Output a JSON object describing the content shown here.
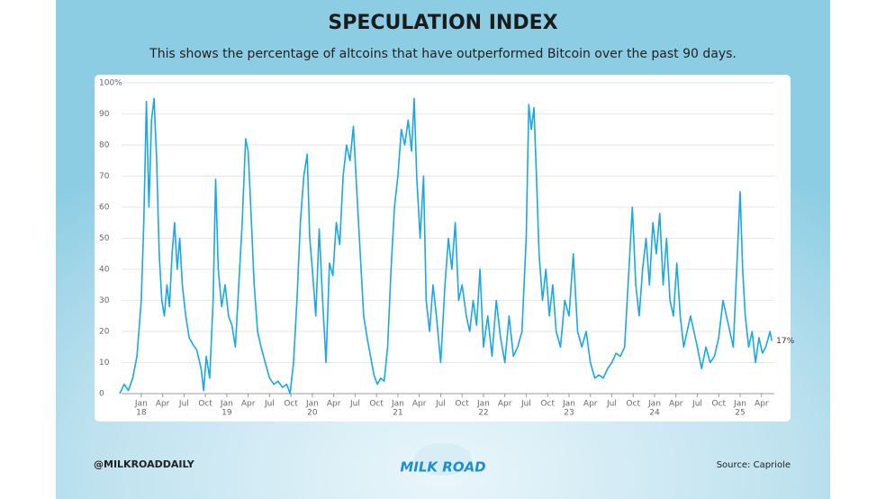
{
  "chart_data": {
    "type": "line",
    "title": "SPECULATION INDEX",
    "subtitle": "This shows the percentage of altcoins that have outperformed Bitcoin over the past 90 days.",
    "handle": "@MILKROADDAILY",
    "logo": "MILK ROAD",
    "source": "Source: Capriole",
    "end_label": "17%",
    "color": "#1aa7e8",
    "grid": true,
    "ylim": [
      0,
      100
    ],
    "yticks": [
      0,
      10,
      20,
      30,
      40,
      50,
      60,
      70,
      80,
      90,
      {
        "value": 100,
        "label": "100%"
      }
    ],
    "xlim": [
      2017.77,
      2025.4
    ],
    "xticks": [
      {
        "value": 2018.0,
        "label": "Jan",
        "year": "18"
      },
      {
        "value": 2018.25,
        "label": "Apr"
      },
      {
        "value": 2018.5,
        "label": "Jul"
      },
      {
        "value": 2018.75,
        "label": "Oct"
      },
      {
        "value": 2019.0,
        "label": "Jan",
        "year": "19"
      },
      {
        "value": 2019.25,
        "label": "Apr"
      },
      {
        "value": 2019.5,
        "label": "Jul"
      },
      {
        "value": 2019.75,
        "label": "Oct"
      },
      {
        "value": 2020.0,
        "label": "Jan",
        "year": "20"
      },
      {
        "value": 2020.25,
        "label": "Apr"
      },
      {
        "value": 2020.5,
        "label": "Jul"
      },
      {
        "value": 2020.75,
        "label": "Oct"
      },
      {
        "value": 2021.0,
        "label": "Jan",
        "year": "21"
      },
      {
        "value": 2021.25,
        "label": "Apr"
      },
      {
        "value": 2021.5,
        "label": "Jul"
      },
      {
        "value": 2021.75,
        "label": "Oct"
      },
      {
        "value": 2022.0,
        "label": "Jan",
        "year": "22"
      },
      {
        "value": 2022.25,
        "label": "Apr"
      },
      {
        "value": 2022.5,
        "label": "Jul"
      },
      {
        "value": 2022.75,
        "label": "Oct"
      },
      {
        "value": 2023.0,
        "label": "Jan",
        "year": "23"
      },
      {
        "value": 2023.25,
        "label": "Apr"
      },
      {
        "value": 2023.5,
        "label": "Jul"
      },
      {
        "value": 2023.75,
        "label": "Oct"
      },
      {
        "value": 2024.0,
        "label": "Jan",
        "year": "24"
      },
      {
        "value": 2024.25,
        "label": "Apr"
      },
      {
        "value": 2024.5,
        "label": "Jul"
      },
      {
        "value": 2024.75,
        "label": "Oct"
      },
      {
        "value": 2025.0,
        "label": "Jan",
        "year": "25"
      },
      {
        "value": 2025.25,
        "label": "Apr"
      }
    ],
    "x": [
      2017.75,
      2017.8,
      2017.85,
      2017.9,
      2017.95,
      2018.0,
      2018.03,
      2018.06,
      2018.09,
      2018.12,
      2018.15,
      2018.18,
      2018.21,
      2018.24,
      2018.27,
      2018.3,
      2018.33,
      2018.36,
      2018.39,
      2018.42,
      2018.45,
      2018.48,
      2018.52,
      2018.56,
      2018.6,
      2018.65,
      2018.7,
      2018.73,
      2018.76,
      2018.8,
      2018.84,
      2018.87,
      2018.9,
      2018.94,
      2018.98,
      2019.02,
      2019.06,
      2019.1,
      2019.14,
      2019.18,
      2019.22,
      2019.25,
      2019.28,
      2019.32,
      2019.36,
      2019.4,
      2019.45,
      2019.5,
      2019.55,
      2019.6,
      2019.65,
      2019.7,
      2019.74,
      2019.78,
      2019.82,
      2019.86,
      2019.9,
      2019.94,
      2019.97,
      2020.0,
      2020.04,
      2020.08,
      2020.12,
      2020.16,
      2020.2,
      2020.24,
      2020.28,
      2020.32,
      2020.36,
      2020.4,
      2020.44,
      2020.48,
      2020.52,
      2020.56,
      2020.6,
      2020.64,
      2020.68,
      2020.72,
      2020.76,
      2020.8,
      2020.84,
      2020.88,
      2020.92,
      2020.96,
      2021.0,
      2021.04,
      2021.08,
      2021.12,
      2021.16,
      2021.19,
      2021.22,
      2021.26,
      2021.3,
      2021.33,
      2021.37,
      2021.41,
      2021.45,
      2021.5,
      2021.55,
      2021.59,
      2021.63,
      2021.67,
      2021.71,
      2021.75,
      2021.8,
      2021.84,
      2021.88,
      2021.92,
      2021.96,
      2022.0,
      2022.05,
      2022.1,
      2022.15,
      2022.2,
      2022.25,
      2022.3,
      2022.35,
      2022.4,
      2022.45,
      2022.5,
      2022.53,
      2022.56,
      2022.59,
      2022.62,
      2022.65,
      2022.69,
      2022.73,
      2022.77,
      2022.81,
      2022.85,
      2022.9,
      2022.95,
      2023.0,
      2023.05,
      2023.1,
      2023.15,
      2023.2,
      2023.25,
      2023.3,
      2023.35,
      2023.4,
      2023.45,
      2023.5,
      2023.55,
      2023.6,
      2023.65,
      2023.7,
      2023.74,
      2023.78,
      2023.82,
      2023.86,
      2023.9,
      2023.94,
      2023.98,
      2024.02,
      2024.06,
      2024.1,
      2024.14,
      2024.18,
      2024.22,
      2024.26,
      2024.3,
      2024.34,
      2024.38,
      2024.42,
      2024.46,
      2024.5,
      2024.55,
      2024.6,
      2024.65,
      2024.7,
      2024.75,
      2024.8,
      2024.84,
      2024.88,
      2024.92,
      2024.96,
      2025.0,
      2025.03,
      2025.06,
      2025.1,
      2025.14,
      2025.18,
      2025.22,
      2025.26,
      2025.3,
      2025.35,
      2025.37
    ],
    "values": [
      0,
      3,
      1,
      5,
      12,
      30,
      55,
      94,
      60,
      88,
      95,
      75,
      45,
      30,
      25,
      35,
      28,
      45,
      55,
      40,
      50,
      35,
      25,
      18,
      16,
      14,
      8,
      1,
      12,
      5,
      30,
      69,
      40,
      28,
      35,
      25,
      22,
      15,
      35,
      55,
      82,
      78,
      60,
      35,
      20,
      15,
      10,
      5,
      3,
      4,
      2,
      3,
      0,
      10,
      30,
      55,
      70,
      77,
      50,
      40,
      25,
      53,
      30,
      10,
      42,
      38,
      55,
      48,
      70,
      80,
      75,
      86,
      65,
      45,
      25,
      18,
      12,
      6,
      3,
      5,
      4,
      15,
      40,
      60,
      70,
      85,
      80,
      88,
      78,
      95,
      70,
      50,
      70,
      30,
      20,
      35,
      25,
      10,
      35,
      50,
      40,
      55,
      30,
      35,
      25,
      20,
      30,
      22,
      40,
      15,
      25,
      12,
      30,
      18,
      10,
      25,
      12,
      15,
      20,
      50,
      93,
      85,
      92,
      70,
      45,
      30,
      40,
      25,
      35,
      20,
      15,
      30,
      25,
      45,
      20,
      15,
      20,
      10,
      5,
      6,
      5,
      8,
      10,
      13,
      12,
      15,
      40,
      60,
      35,
      25,
      40,
      50,
      35,
      55,
      45,
      58,
      35,
      50,
      30,
      25,
      42,
      25,
      15,
      20,
      25,
      20,
      15,
      8,
      15,
      10,
      12,
      18,
      30,
      25,
      20,
      15,
      40,
      65,
      40,
      25,
      15,
      20,
      10,
      18,
      13,
      15,
      20,
      17
    ]
  }
}
